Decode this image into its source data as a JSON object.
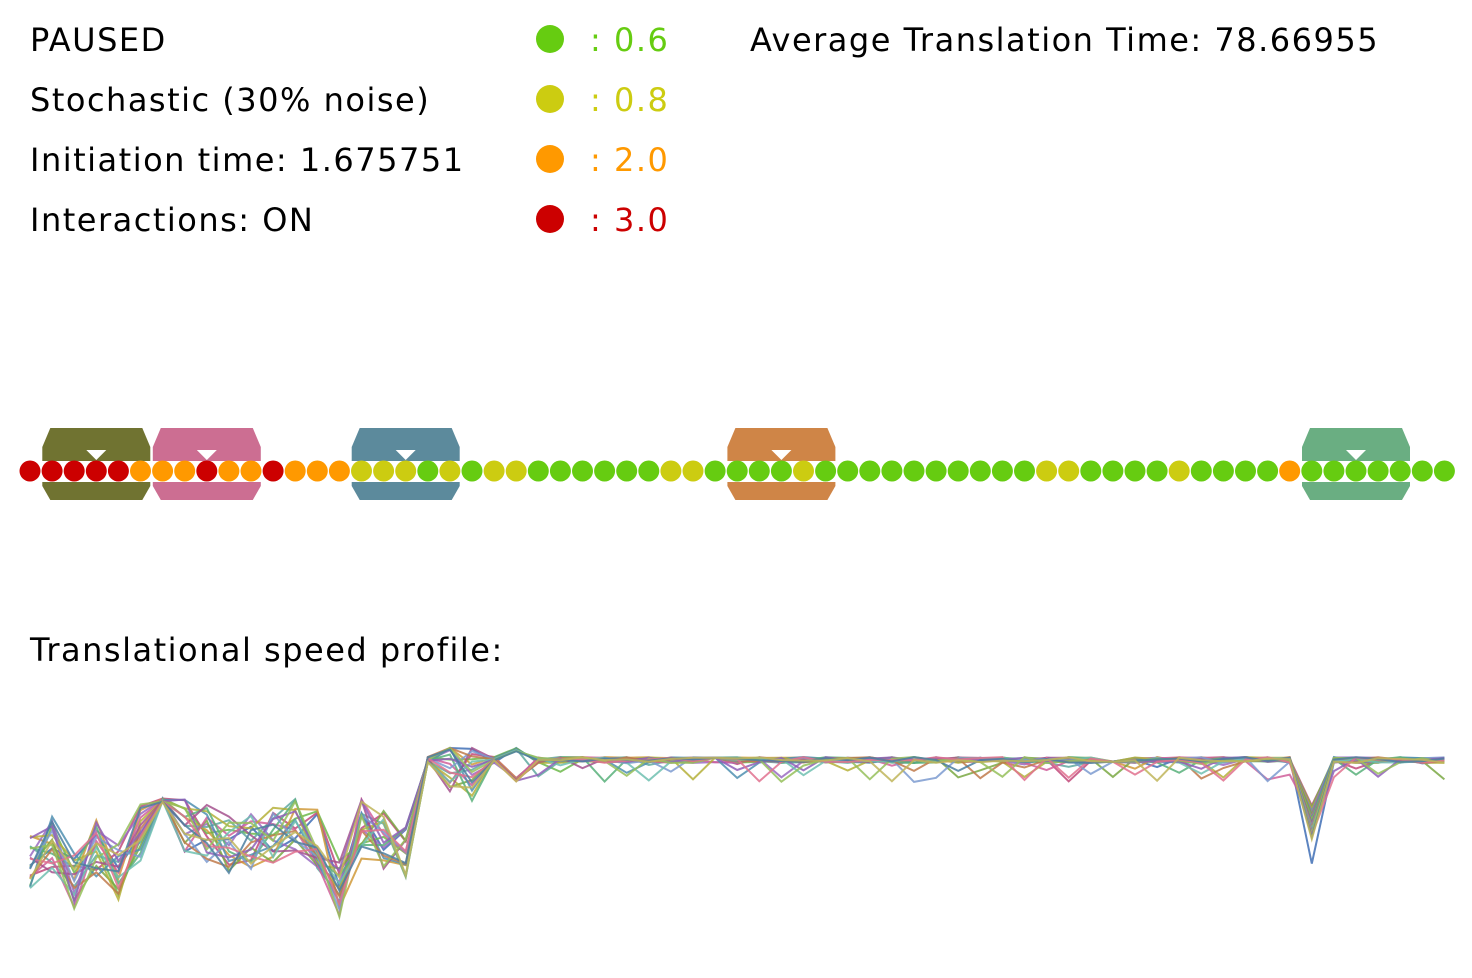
{
  "status": {
    "state": "PAUSED",
    "mode": "Stochastic (30% noise)",
    "initiation": "Initiation time: 1.675751",
    "interactions": "Interactions: ON",
    "average": "Average Translation Time: 78.66955"
  },
  "legend": [
    {
      "color": "#66cc11",
      "label": ": 0.6"
    },
    {
      "color": "#cccc11",
      "label": ": 0.8"
    },
    {
      "color": "#ff9900",
      "label": ": 2.0"
    },
    {
      "color": "#cc0000",
      "label": ": 3.0"
    }
  ],
  "profile_title": "Translational speed profile:",
  "mrna": {
    "codons": [
      "r",
      "r",
      "r",
      "r",
      "r",
      "o",
      "o",
      "o",
      "r",
      "o",
      "o",
      "r",
      "o",
      "o",
      "o",
      "y",
      "y",
      "y",
      "g",
      "y",
      "g",
      "y",
      "y",
      "g",
      "g",
      "g",
      "g",
      "g",
      "g",
      "y",
      "y",
      "g",
      "g",
      "g",
      "g",
      "y",
      "g",
      "g",
      "g",
      "g",
      "g",
      "g",
      "g",
      "g",
      "g",
      "g",
      "y",
      "y",
      "g",
      "g",
      "g",
      "g",
      "y",
      "g",
      "g",
      "g",
      "g",
      "o",
      "g",
      "g",
      "g",
      "g",
      "g",
      "g",
      "g"
    ],
    "ribosomes": [
      {
        "color": "#707331",
        "index": 3
      },
      {
        "color": "#cc6e92",
        "index": 8
      },
      {
        "color": "#5c8a9c",
        "index": 17
      },
      {
        "color": "#cf8547",
        "index": 34
      },
      {
        "color": "#6aae82",
        "index": 60
      }
    ]
  },
  "chart_data": {
    "type": "line",
    "series_count": 20,
    "profile": [
      2.6,
      2.2,
      2.9,
      2.3,
      2.7,
      2.0,
      1.8,
      1.9,
      2.0,
      2.2,
      2.1,
      2.0,
      1.9,
      2.1,
      3.0,
      1.9,
      2.1,
      2.3,
      0.6,
      0.7,
      0.9,
      0.6,
      0.8,
      0.6,
      0.6,
      0.6,
      0.6,
      0.6,
      0.6,
      0.6,
      0.6,
      0.6,
      0.6,
      0.6,
      0.6,
      0.6,
      0.6,
      0.6,
      0.6,
      0.6,
      0.6,
      0.6,
      0.6,
      0.6,
      0.6,
      0.6,
      0.6,
      0.6,
      0.6,
      0.6,
      0.6,
      0.6,
      0.6,
      0.6,
      0.6,
      0.6,
      0.6,
      0.6,
      2.0,
      0.6,
      0.6,
      0.6,
      0.6,
      0.6,
      0.6
    ],
    "colors": [
      "#3f6fb5",
      "#c2497a",
      "#6cb84a",
      "#d09a3a",
      "#5fa9a0",
      "#9a6bc2",
      "#7aa843",
      "#d05f9a",
      "#4f8fb0",
      "#b5b03a",
      "#58b07a",
      "#a4528e",
      "#7d9bd0",
      "#c07a4b",
      "#6ec0b0",
      "#8f5fb8",
      "#95c05a",
      "#e0718e",
      "#4c7fa0",
      "#c0b55a"
    ]
  }
}
